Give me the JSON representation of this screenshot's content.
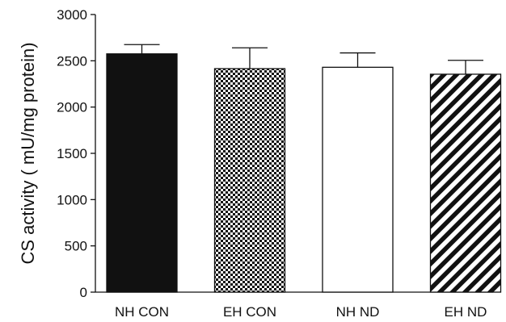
{
  "chart_data": {
    "type": "bar",
    "title": "",
    "xlabel": "",
    "ylabel": "CS activity ( mU/mg protein)",
    "ylim": [
      0,
      3000
    ],
    "yticks": [
      0,
      500,
      1000,
      1500,
      2000,
      2500,
      3000
    ],
    "categories": [
      "NH CON",
      "EH CON",
      "NH ND",
      "EH ND"
    ],
    "values": [
      2575,
      2415,
      2430,
      2355
    ],
    "errors": [
      100,
      225,
      155,
      150
    ],
    "fills": [
      "solid",
      "checker",
      "empty",
      "diagonal"
    ],
    "grid": false,
    "legend": "none"
  },
  "colors": {
    "ink": "#111111",
    "background": "#ffffff"
  }
}
